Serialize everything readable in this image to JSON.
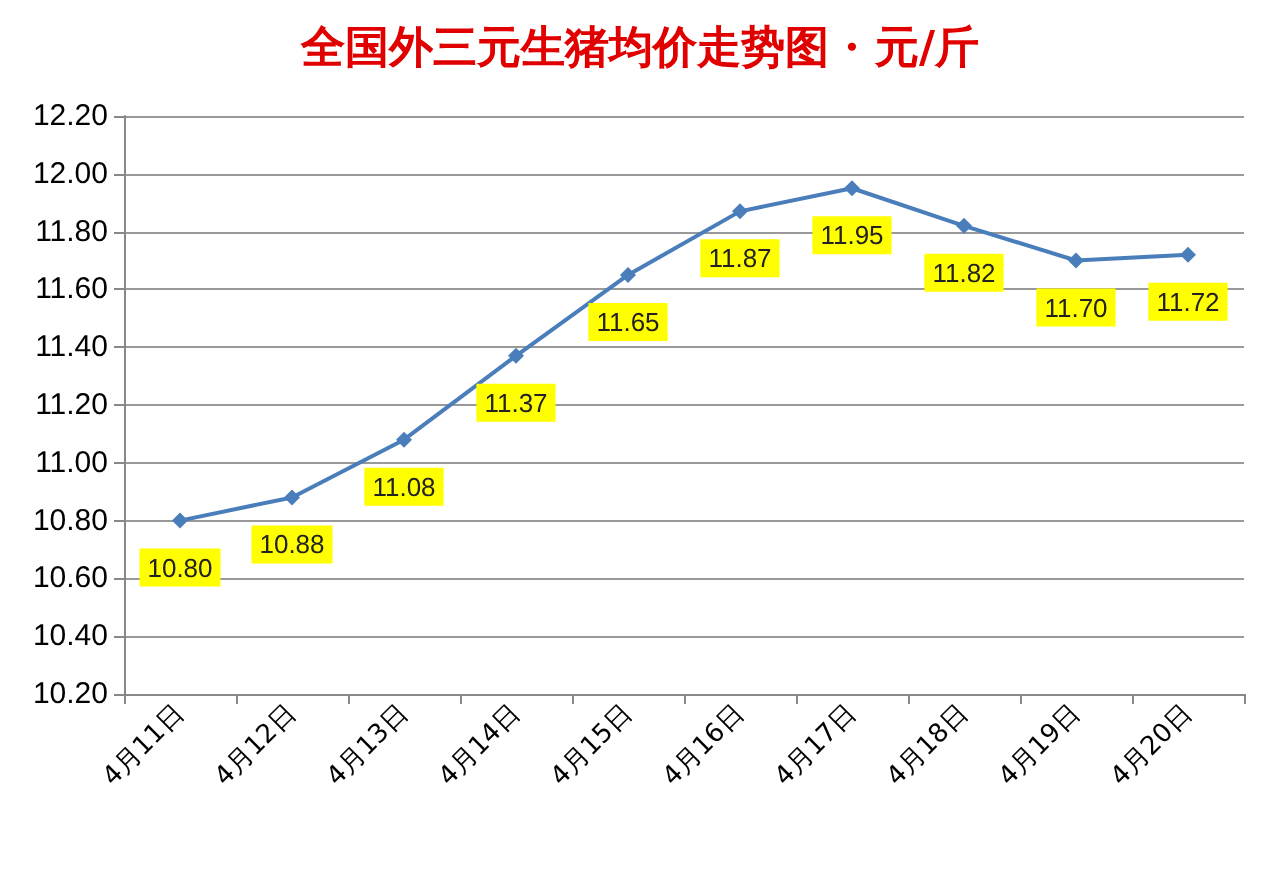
{
  "chart_data": {
    "type": "line",
    "title": "全国外三元生猪均价走势图 · 元/斤",
    "categories": [
      "4月11日",
      "4月12日",
      "4月13日",
      "4月14日",
      "4月15日",
      "4月16日",
      "4月17日",
      "4月18日",
      "4月19日",
      "4月20日"
    ],
    "series": [
      {
        "color": "#4a7ebb",
        "values": [
          10.8,
          10.88,
          11.08,
          11.37,
          11.65,
          11.87,
          11.95,
          11.82,
          11.7,
          11.72
        ],
        "value_labels": [
          "10.80",
          "10.88",
          "11.08",
          "11.37",
          "11.65",
          "11.87",
          "11.95",
          "11.82",
          "11.70",
          "11.72"
        ]
      }
    ],
    "ylim": [
      10.2,
      12.2
    ],
    "yticks": [
      "10.20",
      "10.40",
      "10.60",
      "10.80",
      "11.00",
      "11.20",
      "11.40",
      "11.60",
      "11.80",
      "12.00",
      "12.20"
    ],
    "grid": "y",
    "marker": "diamond",
    "line_style": "solid"
  }
}
